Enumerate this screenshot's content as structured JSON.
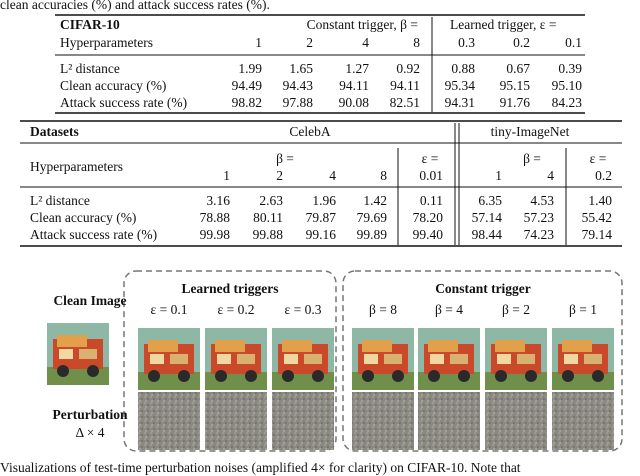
{
  "top_text": "clean accuracies (%) and attack success rates (%).",
  "table1": {
    "dataset": "CIFAR-10",
    "hyper_label": "Hyperparameters",
    "groups": [
      {
        "label": "Constant trigger, β =",
        "hyper": [
          "1",
          "2",
          "4",
          "8"
        ]
      },
      {
        "label": "Learned trigger, ε =",
        "hyper": [
          "0.3",
          "0.2",
          "0.1"
        ]
      }
    ],
    "rows": [
      {
        "label": "L² distance",
        "values": [
          "1.99",
          "1.65",
          "1.27",
          "0.92",
          "0.88",
          "0.67",
          "0.39"
        ]
      },
      {
        "label": "Clean accuracy (%)",
        "values": [
          "94.49",
          "94.43",
          "94.11",
          "94.11",
          "95.34",
          "95.15",
          "95.10"
        ]
      },
      {
        "label": "Attack success rate (%)",
        "values": [
          "98.82",
          "97.88",
          "90.08",
          "82.51",
          "94.31",
          "91.76",
          "84.23"
        ]
      }
    ]
  },
  "table2": {
    "header": "Datasets",
    "datasets": [
      "CelebA",
      "tiny-ImageNet"
    ],
    "hyper_label": "Hyperparameters",
    "param_labels": [
      "β =",
      "ε =",
      "β =",
      "ε ="
    ],
    "hyper": [
      "1",
      "2",
      "4",
      "8",
      "0.01",
      "1",
      "4",
      "0.2"
    ],
    "rows": [
      {
        "label": "L² distance",
        "values": [
          "3.16",
          "2.63",
          "1.96",
          "1.42",
          "0.11",
          "6.35",
          "4.53",
          "1.40"
        ]
      },
      {
        "label": "Clean accuracy (%)",
        "values": [
          "78.88",
          "80.11",
          "79.87",
          "79.69",
          "78.20",
          "57.14",
          "57.23",
          "55.42"
        ]
      },
      {
        "label": "Attack success rate (%)",
        "values": [
          "99.98",
          "99.88",
          "99.16",
          "99.89",
          "99.40",
          "98.44",
          "74.23",
          "79.14"
        ]
      }
    ]
  },
  "figure": {
    "clean_label": "Clean Image",
    "learned_title": "Learned triggers",
    "learned_labels": [
      "ε = 0.1",
      "ε = 0.2",
      "ε = 0.3"
    ],
    "constant_title": "Constant trigger",
    "constant_labels": [
      "β = 8",
      "β = 4",
      "β = 2",
      "β = 1"
    ],
    "perturbation_label": "Perturbation",
    "perturbation_sub": "Δ × 4"
  },
  "caption": "Visualizations of test-time perturbation noises (amplified 4× for clarity) on CIFAR-10. Note that"
}
